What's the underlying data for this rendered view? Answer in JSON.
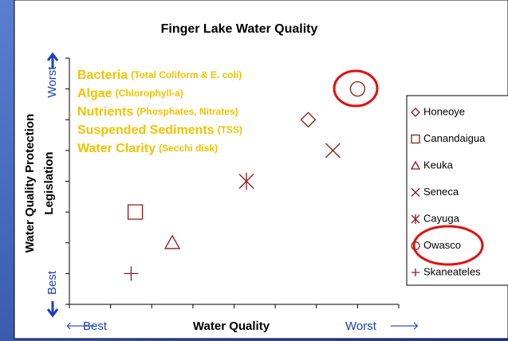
{
  "chart_data": {
    "type": "scatter",
    "title": "Finger Lake Water Quality",
    "x_label": "Water Quality",
    "x_low": "Best",
    "x_high": "Worst",
    "y_label": [
      "Water Quality Protection",
      "Legislation"
    ],
    "y_low": "Best",
    "y_high": "Worst",
    "annotations": [
      {
        "text": "Bacteria",
        "detail": "(Total Coliform & E. coli)"
      },
      {
        "text": "Algae",
        "detail": "(Chlorophyll-a)"
      },
      {
        "text": "Nutrients",
        "detail": "(Phosphates, Nitrates)"
      },
      {
        "text": "Suspended Sediments",
        "detail": "(TSS)"
      },
      {
        "text": "Water Clarity",
        "detail": "(Secchi disk)"
      }
    ],
    "annotation_color": "#f2c200",
    "xlim": [
      0,
      8
    ],
    "xticks": [
      0,
      1,
      2,
      3,
      4,
      5,
      6,
      7,
      8
    ],
    "ylim": [
      0,
      8
    ],
    "yticks": [
      0,
      1,
      2,
      3,
      4,
      5,
      6,
      7,
      8
    ],
    "series": [
      {
        "name": "Honeoye",
        "marker": "diamond",
        "color": "#8b1a1a",
        "x": [
          5.8
        ],
        "values": [
          6
        ]
      },
      {
        "name": "Canandaigua",
        "marker": "square",
        "color": "#8b1a1a",
        "x": [
          1.6
        ],
        "values": [
          3
        ]
      },
      {
        "name": "Keuka",
        "marker": "triangle",
        "color": "#8b1a1a",
        "x": [
          2.5
        ],
        "values": [
          2
        ]
      },
      {
        "name": "Seneca",
        "marker": "x",
        "color": "#8b1a1a",
        "x": [
          6.4
        ],
        "values": [
          5
        ]
      },
      {
        "name": "Cayuga",
        "marker": "star",
        "color": "#8b1a1a",
        "x": [
          4.3
        ],
        "values": [
          4
        ]
      },
      {
        "name": "Owasco",
        "marker": "circle",
        "color": "#8b1a1a",
        "x": [
          7
        ],
        "values": [
          7
        ]
      },
      {
        "name": "Skaneateles",
        "marker": "plus",
        "color": "#8b1a1a",
        "x": [
          1.5
        ],
        "values": [
          1
        ]
      }
    ]
  }
}
